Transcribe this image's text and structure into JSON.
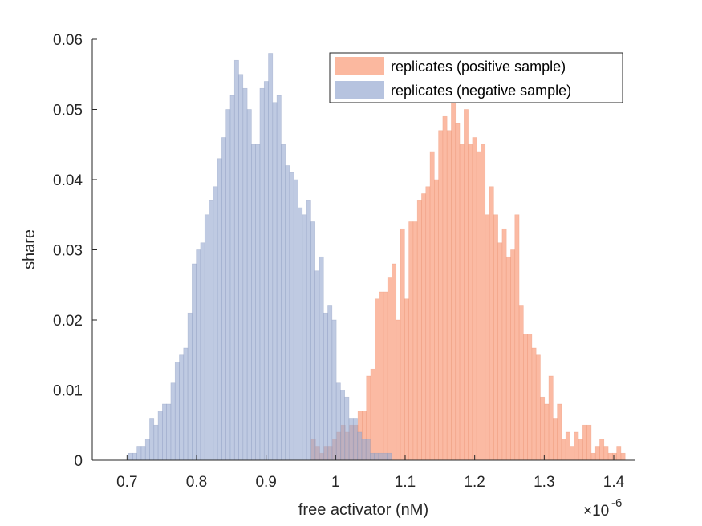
{
  "chart_data": {
    "type": "bar",
    "subtype": "overlaid-histogram",
    "title": "",
    "xlabel": "free activator (nM)",
    "ylabel": "share",
    "x_exponent_label": "×10",
    "x_exponent_power": "-6",
    "xlim": [
      0.65,
      1.43
    ],
    "ylim": [
      0,
      0.06
    ],
    "xticks": [
      0.7,
      0.8,
      0.9,
      1.0,
      1.1,
      1.2,
      1.3,
      1.4
    ],
    "xtick_labels": [
      "0.7",
      "0.8",
      "0.9",
      "1",
      "1.1",
      "1.2",
      "1.3",
      "1.4"
    ],
    "yticks": [
      0,
      0.01,
      0.02,
      0.03,
      0.04,
      0.05,
      0.06
    ],
    "ytick_labels": [
      "0",
      "0.01",
      "0.02",
      "0.03",
      "0.04",
      "0.05",
      "0.06"
    ],
    "legend_position": "top-right",
    "series": [
      {
        "name": "replicates (positive sample)",
        "color": "#F9A07F",
        "bin_start": 0.965,
        "bin_width": 0.0061,
        "values": [
          0.003,
          0.002,
          0.001,
          0.002,
          0.002,
          0.003,
          0.004,
          0.005,
          0.004,
          0.005,
          0.005,
          0.007,
          0.007,
          0.012,
          0.013,
          0.023,
          0.024,
          0.024,
          0.026,
          0.028,
          0.02,
          0.033,
          0.023,
          0.034,
          0.034,
          0.037,
          0.038,
          0.039,
          0.044,
          0.04,
          0.047,
          0.049,
          0.047,
          0.051,
          0.048,
          0.045,
          0.05,
          0.045,
          0.046,
          0.044,
          0.045,
          0.035,
          0.039,
          0.035,
          0.031,
          0.033,
          0.029,
          0.03,
          0.035,
          0.022,
          0.018,
          0.018,
          0.016,
          0.015,
          0.009,
          0.008,
          0.012,
          0.006,
          0.008,
          0.003,
          0.004,
          0.002,
          0.004,
          0.003,
          0.005,
          0.005,
          0.001,
          0.002,
          0.003,
          0.002,
          0.001,
          0.001,
          0.002,
          0.001
        ]
      },
      {
        "name": "replicates (negative sample)",
        "color": "#97A9D1",
        "bin_start": 0.702,
        "bin_width": 0.0061,
        "values": [
          0.001,
          0.001,
          0.002,
          0.002,
          0.003,
          0.006,
          0.005,
          0.007,
          0.008,
          0.008,
          0.011,
          0.014,
          0.015,
          0.016,
          0.021,
          0.028,
          0.03,
          0.031,
          0.035,
          0.037,
          0.039,
          0.043,
          0.046,
          0.05,
          0.052,
          0.057,
          0.055,
          0.053,
          0.05,
          0.045,
          0.045,
          0.053,
          0.054,
          0.058,
          0.051,
          0.052,
          0.045,
          0.042,
          0.041,
          0.04,
          0.036,
          0.035,
          0.037,
          0.034,
          0.027,
          0.029,
          0.021,
          0.022,
          0.02,
          0.011,
          0.01,
          0.009,
          0.006,
          0.006,
          0.004,
          0.003,
          0.003,
          0.001,
          0.001,
          0.001,
          0.001,
          0.001
        ]
      }
    ]
  }
}
